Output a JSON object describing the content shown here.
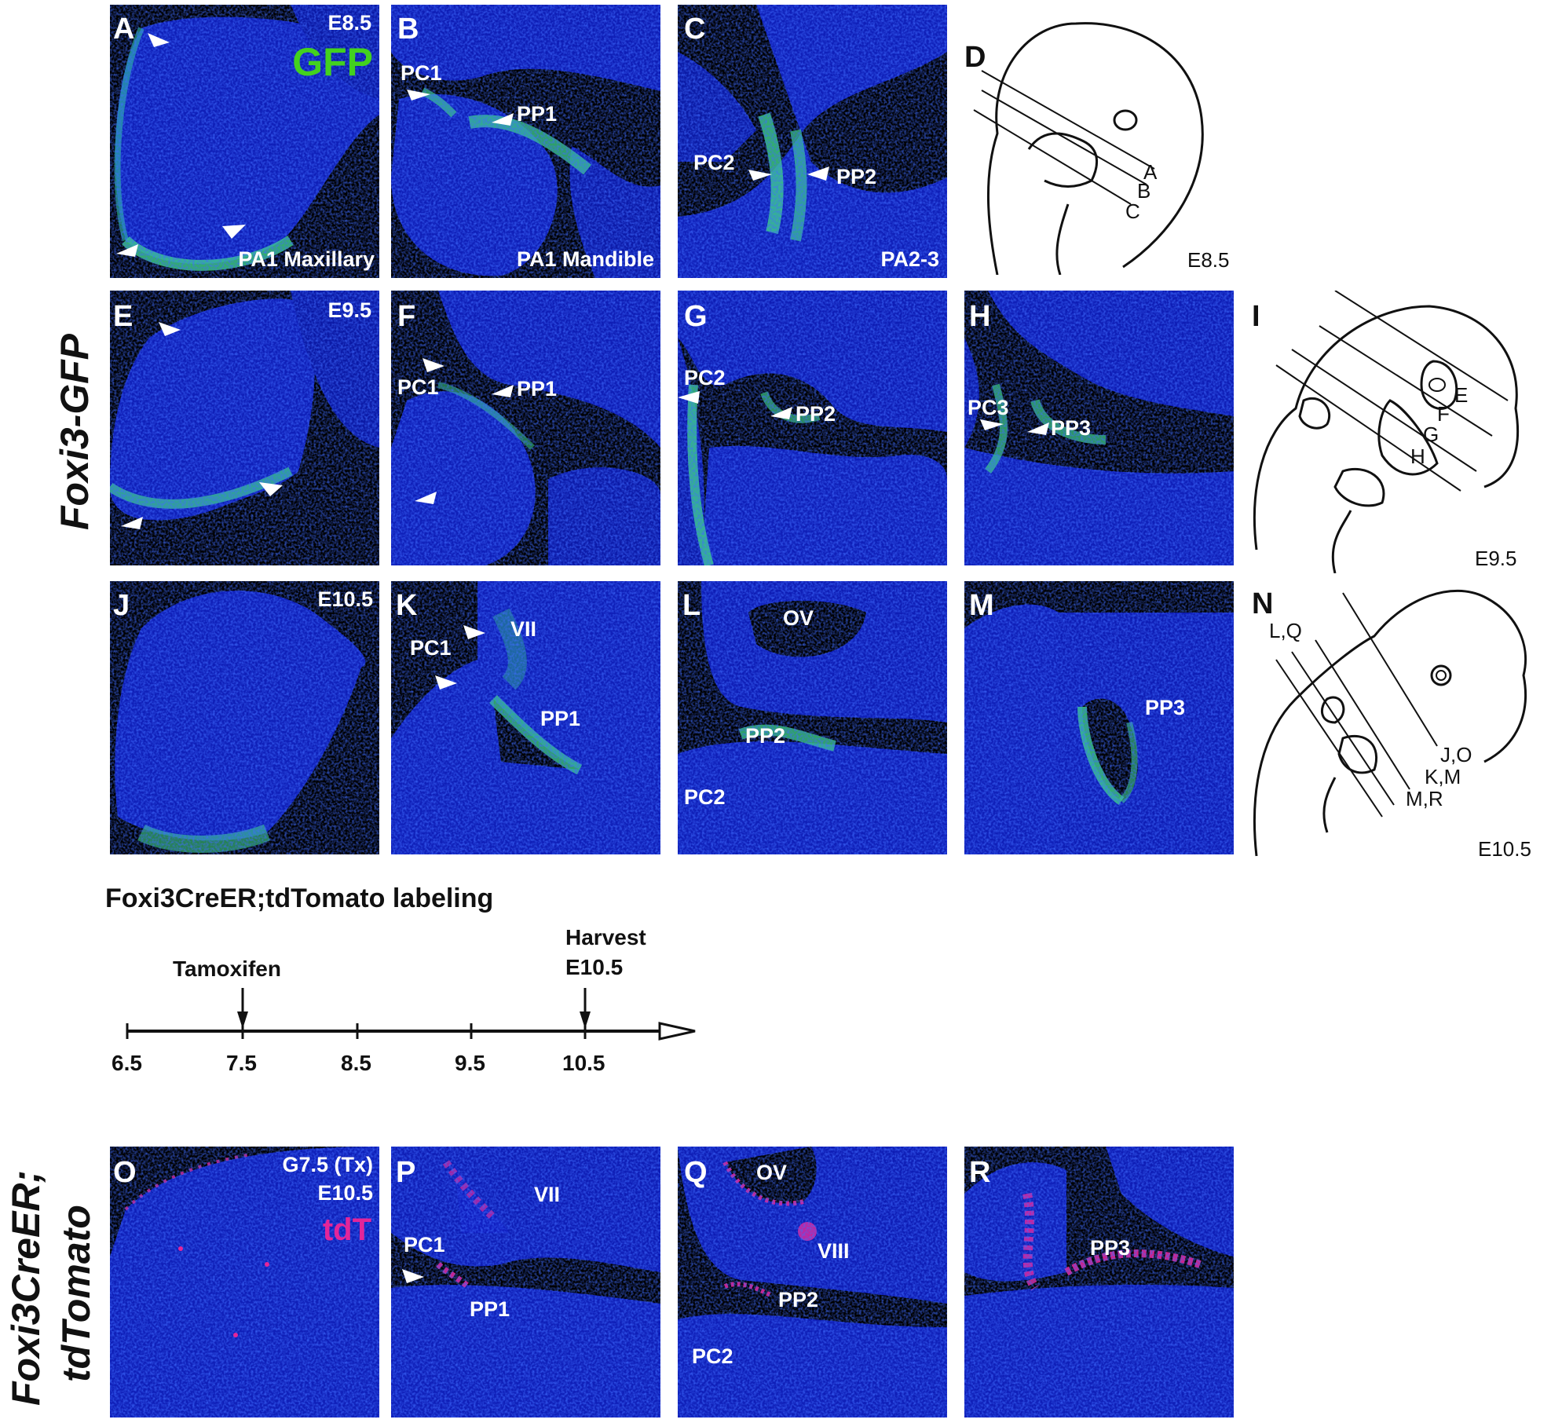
{
  "row1": {
    "panels": [
      {
        "letter": "A",
        "stage": "E8.5",
        "channel": "GFP",
        "caption": "PA1 Maxillary"
      },
      {
        "letter": "B",
        "labels": [
          "PC1",
          "PP1"
        ],
        "caption": "PA1 Mandible"
      },
      {
        "letter": "C",
        "labels": [
          "PC2",
          "PP2"
        ],
        "caption": "PA2-3"
      }
    ],
    "diagram": {
      "letter": "D",
      "lines": [
        "A",
        "B",
        "C"
      ],
      "stage": "E8.5"
    }
  },
  "row2": {
    "panels": [
      {
        "letter": "E",
        "stage": "E9.5"
      },
      {
        "letter": "F",
        "labels": [
          "PC1",
          "PP1"
        ]
      },
      {
        "letter": "G",
        "labels": [
          "PC2",
          "PP2"
        ]
      },
      {
        "letter": "H",
        "labels": [
          "PC3",
          "PP3"
        ]
      }
    ],
    "diagram": {
      "letter": "I",
      "lines": [
        "E",
        "F",
        "G",
        "H"
      ],
      "stage": "E9.5"
    }
  },
  "row3": {
    "panels": [
      {
        "letter": "J",
        "stage": "E10.5"
      },
      {
        "letter": "K",
        "labels": [
          "PC1",
          "VII",
          "PP1"
        ]
      },
      {
        "letter": "L",
        "labels": [
          "OV",
          "PP2",
          "PC2"
        ]
      },
      {
        "letter": "M",
        "labels": [
          "PP3"
        ]
      }
    ],
    "diagram": {
      "letter": "N",
      "lines": [
        "L,Q",
        "J,O",
        "K,M",
        "M,R"
      ],
      "stage": "E10.5"
    }
  },
  "gfp_row_title": "Foxi3-GFP",
  "timeline": {
    "title": "Foxi3CreER;tdTomato labeling",
    "tamoxifen_label": "Tamoxifen",
    "harvest_label_1": "Harvest",
    "harvest_label_2": "E10.5",
    "ticks": [
      "6.5",
      "7.5",
      "8.5",
      "9.5",
      "10.5"
    ]
  },
  "row4": {
    "panels": [
      {
        "letter": "O",
        "line1": "G7.5 (Tx)",
        "line2": "E10.5",
        "channel": "tdT"
      },
      {
        "letter": "P",
        "labels": [
          "VII",
          "PC1",
          "PP1"
        ]
      },
      {
        "letter": "Q",
        "labels": [
          "OV",
          "VIII",
          "PP2",
          "PC2"
        ]
      },
      {
        "letter": "R",
        "labels": [
          "PP3"
        ]
      }
    ]
  },
  "tdt_row_title_1": "Foxi3CreER;",
  "tdt_row_title_2": "tdTomato",
  "colors": {
    "nuclei": "#0a1ccc",
    "gfp": "#43d11f",
    "tdtomato": "#e3259a",
    "background": "#000000"
  }
}
